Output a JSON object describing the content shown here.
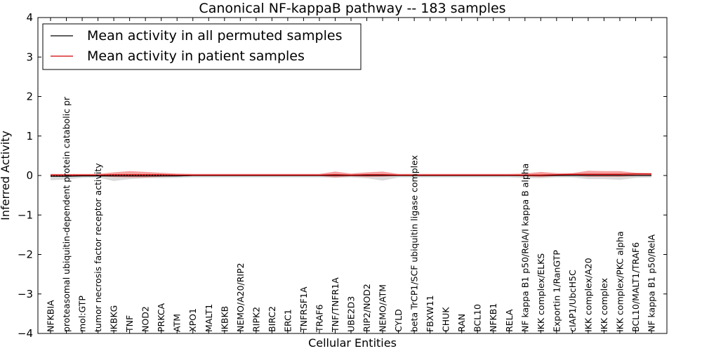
{
  "chart_data": {
    "type": "line",
    "title": "Canonical NF-kappaB pathway -- 183 samples",
    "xlabel": "Cellular Entities",
    "ylabel": "Inferred Activity",
    "ylim": [
      -4,
      4
    ],
    "yticks": [
      -4,
      -3,
      -2,
      -1,
      0,
      1,
      2,
      3,
      4
    ],
    "ytick_labels": [
      "−4",
      "−3",
      "−2",
      "−1",
      "0",
      "1",
      "2",
      "3",
      "4"
    ],
    "legend_position": "top-left",
    "categories": [
      "NFKBIA",
      "proteasomal ubiquitin-dependent protein catabolic pr",
      "mol:GTP",
      "tumor necrosis factor receptor activity",
      "IKBKG",
      "TNF",
      "NOD2",
      "PRKCA",
      "ATM",
      "XPO1",
      "MALT1",
      "IKBKB",
      "NEMO/A20/RIP2",
      "RIPK2",
      "BIRC2",
      "ERC1",
      "TNFRSF1A",
      "TRAF6",
      "TNF/TNFR1A",
      "UBE2D3",
      "RIP2/NOD2",
      "NEMO/ATM",
      "CYLD",
      "beta TrCP1/SCF ubiquitin ligase complex",
      "FBXW11",
      "CHUK",
      "RAN",
      "BCL10",
      "NFKB1",
      "RELA",
      "NF kappa B1 p50/RelA/I kappa B alpha",
      "IKK complex/ELKS",
      "Exportin 1/RanGTP",
      "cIAP1/UbcH5C",
      "IKK complex/A20",
      "IKK complex",
      "IKK complex/PKC alpha",
      "BCL10/MALT1/TRAF6",
      "NF kappa B1 p50/RelA"
    ],
    "series": [
      {
        "name": "Mean activity in all permuted samples",
        "color": "#000000",
        "values": [
          -0.02,
          -0.02,
          -0.01,
          -0.01,
          -0.01,
          -0.01,
          -0.01,
          -0.01,
          -0.01,
          0,
          0,
          0,
          0,
          0,
          0,
          0,
          0,
          0,
          0,
          0,
          0,
          0,
          0,
          0,
          0,
          0,
          0,
          0,
          0,
          0,
          0,
          0,
          0,
          0,
          0,
          0,
          0,
          0,
          0
        ],
        "band_upper": [
          0.04,
          0.03,
          0.03,
          0.03,
          0.04,
          0.04,
          0.04,
          0.04,
          0.04,
          0.04,
          0.04,
          0.04,
          0.04,
          0.04,
          0.04,
          0.04,
          0.04,
          0.04,
          0.04,
          0.04,
          0.04,
          0.04,
          0.04,
          0.04,
          0.04,
          0.04,
          0.04,
          0.04,
          0.04,
          0.04,
          0.04,
          0.04,
          0.04,
          0.04,
          0.04,
          0.04,
          0.04,
          0.04,
          0.04
        ],
        "band_lower": [
          -0.12,
          -0.1,
          -0.06,
          -0.05,
          -0.14,
          -0.09,
          -0.07,
          -0.07,
          -0.06,
          -0.05,
          -0.05,
          -0.05,
          -0.05,
          -0.05,
          -0.05,
          -0.05,
          -0.05,
          -0.05,
          -0.06,
          -0.05,
          -0.07,
          -0.13,
          -0.05,
          -0.05,
          -0.05,
          -0.05,
          -0.05,
          -0.05,
          -0.05,
          -0.05,
          -0.07,
          -0.07,
          -0.05,
          -0.05,
          -0.09,
          -0.09,
          -0.11,
          -0.06,
          -0.05
        ],
        "band_color": "#b0b0b0"
      },
      {
        "name": "Mean activity in patient samples",
        "color": "#d00000",
        "values": [
          0.01,
          0.01,
          0.01,
          0.01,
          0.02,
          0.02,
          0.02,
          0.02,
          0.01,
          0.01,
          0.01,
          0.01,
          0.01,
          0.01,
          0.01,
          0.01,
          0.01,
          0.01,
          0.02,
          0.01,
          0.02,
          0.02,
          0.01,
          0.01,
          0.01,
          0.01,
          0.01,
          0.01,
          0.01,
          0.01,
          0.01,
          0.01,
          0.02,
          0.03,
          0.03,
          0.03,
          0.03,
          0.04,
          0.04
        ],
        "band_upper": [
          0.04,
          0.04,
          0.04,
          0.04,
          0.08,
          0.11,
          0.09,
          0.07,
          0.05,
          0.04,
          0.04,
          0.04,
          0.04,
          0.04,
          0.04,
          0.04,
          0.04,
          0.04,
          0.1,
          0.05,
          0.08,
          0.1,
          0.04,
          0.04,
          0.04,
          0.04,
          0.04,
          0.04,
          0.04,
          0.04,
          0.05,
          0.09,
          0.06,
          0.06,
          0.12,
          0.11,
          0.11,
          0.07,
          0.06
        ],
        "band_lower": [
          -0.02,
          -0.02,
          -0.01,
          -0.01,
          -0.04,
          -0.05,
          -0.05,
          -0.03,
          -0.02,
          -0.01,
          -0.01,
          -0.01,
          -0.01,
          -0.01,
          -0.01,
          -0.01,
          -0.01,
          -0.01,
          -0.05,
          -0.02,
          -0.04,
          -0.03,
          -0.01,
          -0.01,
          -0.01,
          -0.01,
          -0.01,
          -0.01,
          -0.01,
          -0.01,
          -0.02,
          -0.04,
          -0.01,
          0.0,
          -0.03,
          -0.03,
          -0.03,
          -0.01,
          0.0
        ],
        "band_color": "#f28080"
      }
    ],
    "baseline": 0
  }
}
